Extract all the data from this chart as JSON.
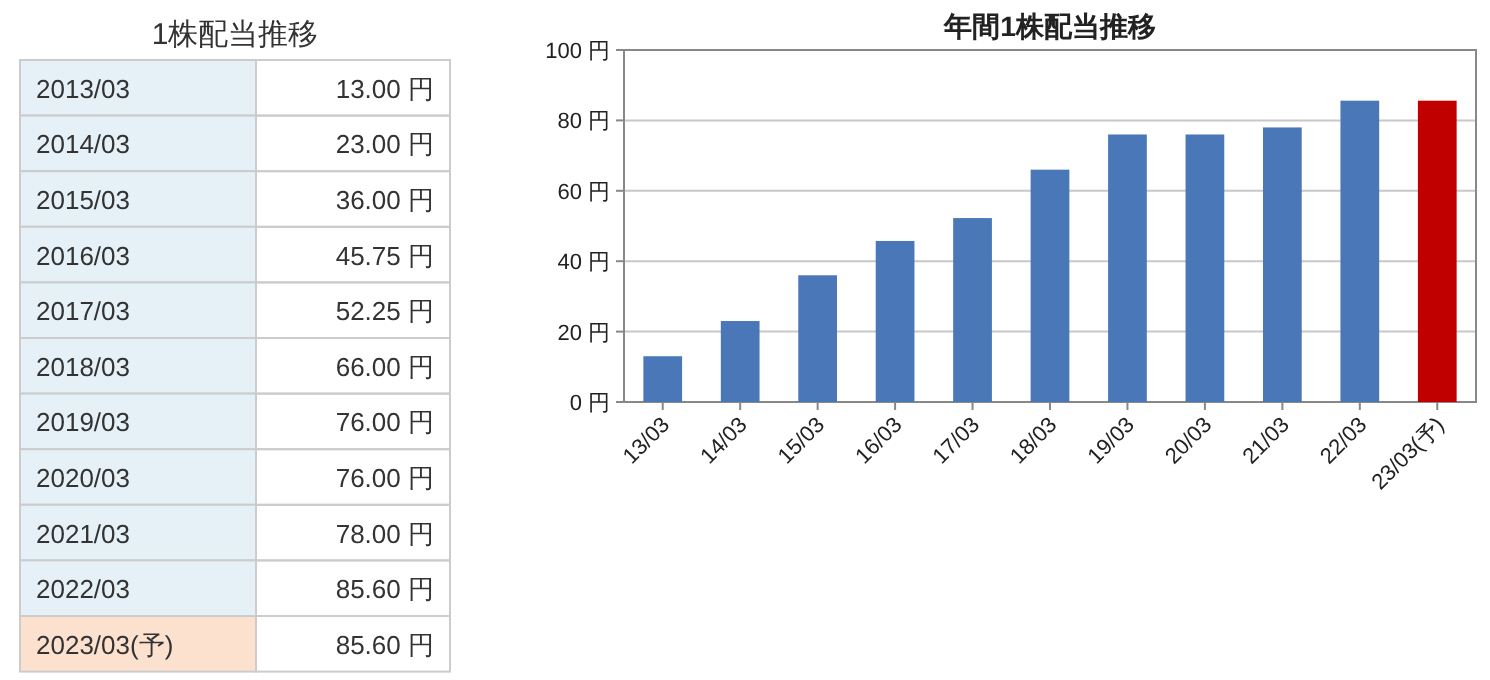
{
  "chart_data": [
    {
      "type": "other",
      "title": "1株配当推移",
      "categories": [
        "2013/03",
        "2014/03",
        "2015/03",
        "2016/03",
        "2017/03",
        "2018/03",
        "2019/03",
        "2020/03",
        "2021/03",
        "2022/03",
        "2023/03(予)"
      ],
      "value_labels": [
        "13.00 円",
        "23.00 円",
        "36.00 円",
        "45.75 円",
        "52.25 円",
        "66.00 円",
        "76.00 円",
        "76.00 円",
        "78.00 円",
        "85.60 円",
        "85.60 円"
      ],
      "colors": [
        "#e5f1f7",
        "#e5f1f7",
        "#e5f1f7",
        "#e5f1f7",
        "#e5f1f7",
        "#e5f1f7",
        "#e5f1f7",
        "#e5f1f7",
        "#e5f1f7",
        "#e5f1f7",
        "#fde1cf"
      ]
    },
    {
      "type": "bar",
      "title": "年間1株配当推移",
      "categories": [
        "13/03",
        "14/03",
        "15/03",
        "16/03",
        "17/03",
        "18/03",
        "19/03",
        "20/03",
        "21/03",
        "22/03",
        "23/03(予)"
      ],
      "values": [
        13.0,
        23.0,
        36.0,
        45.75,
        52.25,
        66.0,
        76.0,
        76.0,
        78.0,
        85.6,
        85.6
      ],
      "colors": [
        "#4a77b7",
        "#4a77b7",
        "#4a77b7",
        "#4a77b7",
        "#4a77b7",
        "#4a77b7",
        "#4a77b7",
        "#4a77b7",
        "#4a77b7",
        "#4a77b7",
        "#c00000"
      ],
      "ylim": [
        0,
        100
      ],
      "yticks": [
        {
          "value": 0,
          "label": "0 円"
        },
        {
          "value": 20,
          "label": "20 円"
        },
        {
          "value": 40,
          "label": "40 円"
        },
        {
          "value": 60,
          "label": "60 円"
        },
        {
          "value": 80,
          "label": "80 円"
        },
        {
          "value": 100,
          "label": "100 円"
        }
      ],
      "grid": "y"
    }
  ]
}
